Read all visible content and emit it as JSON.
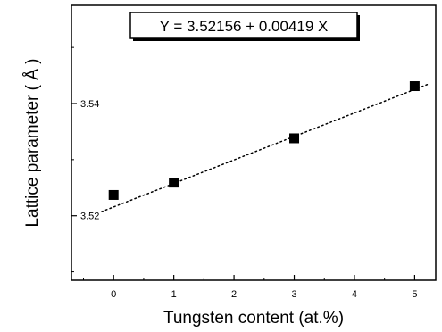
{
  "chart_data": {
    "type": "scatter",
    "xlabel": "Tungsten content (at.%)",
    "ylabel": "Lattice parameter  ( Å )",
    "xlim": [
      -0.7,
      5.35
    ],
    "ylim": [
      3.5085,
      3.5575
    ],
    "x_ticks": [
      0,
      1,
      2,
      3,
      4,
      5
    ],
    "y_ticks": [
      3.52,
      3.54
    ],
    "x_tick_labels": [
      "0",
      "1",
      "2",
      "3",
      "4",
      "5"
    ],
    "y_tick_labels": [
      "3.52",
      "3.54"
    ],
    "grid": false,
    "series": [
      {
        "x": [
          0,
          1,
          3,
          5
        ],
        "y": [
          3.5237,
          3.5259,
          3.5338,
          3.5431
        ]
      }
    ],
    "fit_line": {
      "intercept": 3.52156,
      "slope": 0.00419,
      "x_range": [
        -0.2,
        5.25
      ],
      "style": "dotted"
    },
    "annotation": "Y = 3.52156 + 0.00419 X"
  }
}
